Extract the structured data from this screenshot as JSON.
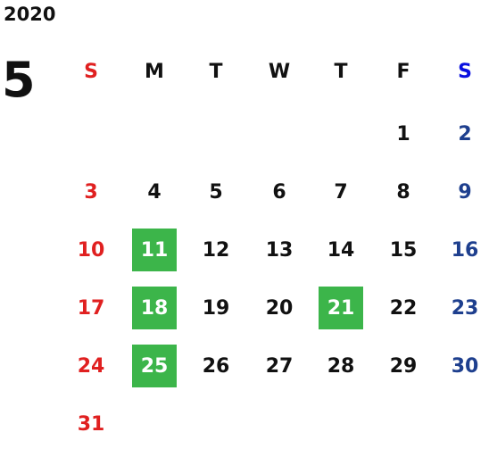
{
  "year": "2020",
  "month": "5",
  "weekdays": [
    "S",
    "M",
    "T",
    "W",
    "T",
    "F",
    "S"
  ],
  "weeks": [
    [
      null,
      null,
      null,
      null,
      null,
      {
        "day": 1
      },
      {
        "day": 2
      }
    ],
    [
      {
        "day": 3
      },
      {
        "day": 4
      },
      {
        "day": 5
      },
      {
        "day": 6
      },
      {
        "day": 7
      },
      {
        "day": 8
      },
      {
        "day": 9
      }
    ],
    [
      {
        "day": 10
      },
      {
        "day": 11,
        "highlight": true
      },
      {
        "day": 12
      },
      {
        "day": 13
      },
      {
        "day": 14
      },
      {
        "day": 15
      },
      {
        "day": 16
      }
    ],
    [
      {
        "day": 17
      },
      {
        "day": 18,
        "highlight": true
      },
      {
        "day": 19
      },
      {
        "day": 20
      },
      {
        "day": 21,
        "highlight": true
      },
      {
        "day": 22
      },
      {
        "day": 23
      }
    ],
    [
      {
        "day": 24
      },
      {
        "day": 25,
        "highlight": true
      },
      {
        "day": 26
      },
      {
        "day": 27
      },
      {
        "day": 28
      },
      {
        "day": 29
      },
      {
        "day": 30
      }
    ],
    [
      {
        "day": 31
      },
      null,
      null,
      null,
      null,
      null,
      null
    ]
  ]
}
